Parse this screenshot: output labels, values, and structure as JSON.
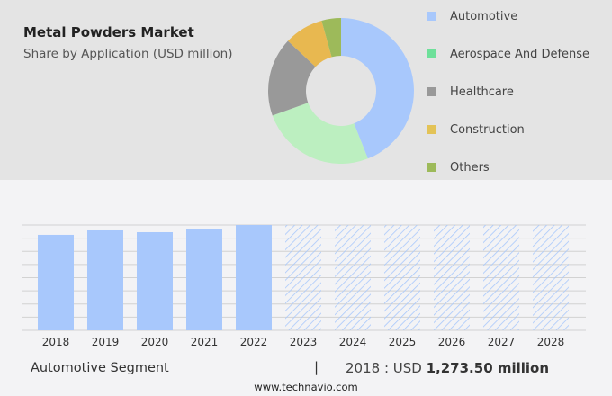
{
  "header": {
    "title": "Metal Powders Market",
    "subtitle": "Share by Application (USD million)"
  },
  "chart_data": [
    {
      "type": "pie",
      "variant": "donut",
      "title": "Metal Powders Market",
      "subtitle": "Share by Application (USD million)",
      "legend_placement": "right",
      "slices": [
        {
          "name": "Automotive",
          "share": 44,
          "color": "#a8c8fc"
        },
        {
          "name": "Aerospace And Defense",
          "share": 25.5,
          "color": "#bcefc0",
          "legend_color": "#6ee09a"
        },
        {
          "name": "Healthcare",
          "share": 17.5,
          "color": "#999999"
        },
        {
          "name": "Construction",
          "share": 8.7,
          "color": "#e8b850",
          "legend_color": "#e3c357"
        },
        {
          "name": "Others",
          "share": 4.3,
          "color": "#9dba5a"
        }
      ]
    },
    {
      "type": "bar",
      "grid": true,
      "categories": [
        "2018",
        "2019",
        "2020",
        "2021",
        "2022",
        "2023",
        "2024",
        "2025",
        "2026",
        "2027",
        "2028"
      ],
      "values": [
        1273.5,
        1333,
        1309,
        1345,
        1405,
        null,
        null,
        null,
        null,
        null,
        null
      ],
      "forecast_from": "2023",
      "color": "#a8c8fc"
    }
  ],
  "footer": {
    "segment": "Automotive Segment",
    "separator": "|",
    "year_label": "2018 : USD",
    "value": "1,273.50 million",
    "source": "www.technavio.com"
  }
}
